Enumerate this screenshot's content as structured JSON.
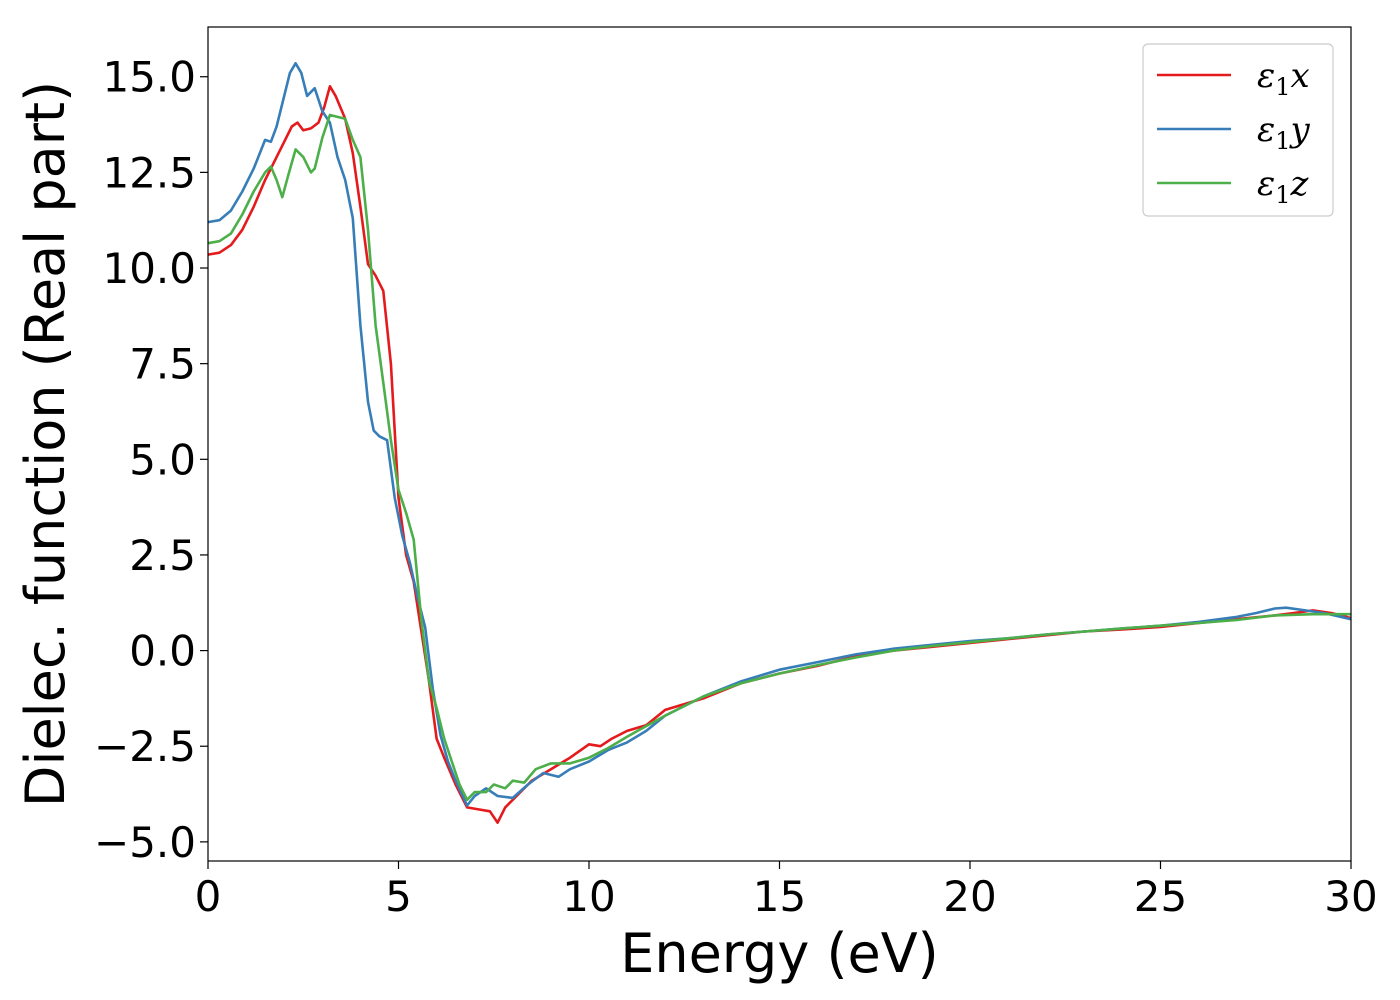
{
  "chart_data": {
    "type": "line",
    "title": "",
    "xlabel": "Energy (eV)",
    "ylabel": "Dielec. function (Real part)",
    "xlim": [
      0,
      30
    ],
    "ylim": [
      -5.5,
      16.3
    ],
    "xticks": [
      0,
      5,
      10,
      15,
      20,
      25,
      30
    ],
    "xtick_labels": [
      "0",
      "5",
      "10",
      "15",
      "20",
      "25",
      "30"
    ],
    "yticks": [
      -5.0,
      -2.5,
      0.0,
      2.5,
      5.0,
      7.5,
      10.0,
      12.5,
      15.0
    ],
    "ytick_labels": [
      "−5.0",
      "−2.5",
      "0.0",
      "2.5",
      "5.0",
      "7.5",
      "10.0",
      "12.5",
      "15.0"
    ],
    "grid": false,
    "legend_position": "top-right",
    "series": [
      {
        "name": "ε₁x",
        "legend_main": "ε",
        "legend_sub": "1",
        "legend_var": "x",
        "color": "#e41a1c",
        "points": [
          [
            0,
            10.35
          ],
          [
            0.3,
            10.4
          ],
          [
            0.6,
            10.6
          ],
          [
            0.9,
            11.0
          ],
          [
            1.2,
            11.6
          ],
          [
            1.5,
            12.3
          ],
          [
            1.8,
            12.9
          ],
          [
            2.0,
            13.3
          ],
          [
            2.2,
            13.7
          ],
          [
            2.35,
            13.8
          ],
          [
            2.5,
            13.6
          ],
          [
            2.7,
            13.65
          ],
          [
            2.9,
            13.8
          ],
          [
            3.05,
            14.2
          ],
          [
            3.2,
            14.75
          ],
          [
            3.35,
            14.5
          ],
          [
            3.6,
            13.9
          ],
          [
            3.8,
            13.0
          ],
          [
            4.0,
            11.6
          ],
          [
            4.2,
            10.1
          ],
          [
            4.4,
            9.8
          ],
          [
            4.6,
            9.4
          ],
          [
            4.8,
            7.5
          ],
          [
            5.0,
            4.0
          ],
          [
            5.2,
            2.5
          ],
          [
            5.4,
            1.8
          ],
          [
            5.6,
            0.5
          ],
          [
            5.8,
            -0.8
          ],
          [
            6.0,
            -2.3
          ],
          [
            6.2,
            -2.8
          ],
          [
            6.5,
            -3.5
          ],
          [
            6.8,
            -4.1
          ],
          [
            7.1,
            -4.15
          ],
          [
            7.4,
            -4.2
          ],
          [
            7.6,
            -4.5
          ],
          [
            7.8,
            -4.1
          ],
          [
            8.1,
            -3.8
          ],
          [
            8.5,
            -3.4
          ],
          [
            9.0,
            -3.1
          ],
          [
            9.5,
            -2.8
          ],
          [
            10.0,
            -2.45
          ],
          [
            10.3,
            -2.5
          ],
          [
            10.6,
            -2.3
          ],
          [
            11.0,
            -2.1
          ],
          [
            11.5,
            -1.95
          ],
          [
            12.0,
            -1.55
          ],
          [
            13.0,
            -1.25
          ],
          [
            14.0,
            -0.85
          ],
          [
            15.0,
            -0.6
          ],
          [
            16.0,
            -0.4
          ],
          [
            17.0,
            -0.15
          ],
          [
            18.0,
            0.0
          ],
          [
            19.0,
            0.1
          ],
          [
            20.0,
            0.2
          ],
          [
            21.0,
            0.3
          ],
          [
            22.0,
            0.4
          ],
          [
            23.0,
            0.5
          ],
          [
            24.0,
            0.55
          ],
          [
            25.0,
            0.62
          ],
          [
            26.0,
            0.72
          ],
          [
            27.0,
            0.82
          ],
          [
            28.0,
            0.92
          ],
          [
            28.5,
            0.98
          ],
          [
            29.0,
            1.05
          ],
          [
            29.5,
            0.98
          ],
          [
            30.0,
            0.85
          ]
        ]
      },
      {
        "name": "ε₁y",
        "legend_main": "ε",
        "legend_sub": "1",
        "legend_var": "y",
        "color": "#377eb8",
        "points": [
          [
            0,
            11.2
          ],
          [
            0.3,
            11.25
          ],
          [
            0.6,
            11.5
          ],
          [
            0.9,
            12.0
          ],
          [
            1.2,
            12.6
          ],
          [
            1.5,
            13.35
          ],
          [
            1.65,
            13.3
          ],
          [
            1.8,
            13.7
          ],
          [
            2.0,
            14.5
          ],
          [
            2.15,
            15.1
          ],
          [
            2.3,
            15.35
          ],
          [
            2.45,
            15.1
          ],
          [
            2.6,
            14.5
          ],
          [
            2.8,
            14.7
          ],
          [
            3.0,
            14.1
          ],
          [
            3.2,
            13.8
          ],
          [
            3.4,
            12.9
          ],
          [
            3.6,
            12.3
          ],
          [
            3.8,
            11.3
          ],
          [
            4.0,
            8.5
          ],
          [
            4.2,
            6.5
          ],
          [
            4.35,
            5.75
          ],
          [
            4.5,
            5.6
          ],
          [
            4.7,
            5.5
          ],
          [
            4.9,
            4.0
          ],
          [
            5.1,
            3.0
          ],
          [
            5.3,
            2.3
          ],
          [
            5.5,
            1.4
          ],
          [
            5.7,
            0.6
          ],
          [
            5.9,
            -1.0
          ],
          [
            6.1,
            -2.2
          ],
          [
            6.3,
            -2.9
          ],
          [
            6.5,
            -3.4
          ],
          [
            6.8,
            -4.05
          ],
          [
            7.0,
            -3.8
          ],
          [
            7.3,
            -3.6
          ],
          [
            7.6,
            -3.8
          ],
          [
            8.0,
            -3.85
          ],
          [
            8.4,
            -3.5
          ],
          [
            8.8,
            -3.2
          ],
          [
            9.2,
            -3.3
          ],
          [
            9.5,
            -3.1
          ],
          [
            10.0,
            -2.9
          ],
          [
            10.5,
            -2.6
          ],
          [
            11.0,
            -2.4
          ],
          [
            11.5,
            -2.1
          ],
          [
            12.0,
            -1.7
          ],
          [
            13.0,
            -1.2
          ],
          [
            14.0,
            -0.8
          ],
          [
            15.0,
            -0.5
          ],
          [
            16.0,
            -0.3
          ],
          [
            17.0,
            -0.1
          ],
          [
            18.0,
            0.05
          ],
          [
            19.0,
            0.15
          ],
          [
            20.0,
            0.25
          ],
          [
            21.0,
            0.32
          ],
          [
            22.0,
            0.42
          ],
          [
            23.0,
            0.5
          ],
          [
            24.0,
            0.58
          ],
          [
            25.0,
            0.65
          ],
          [
            26.0,
            0.75
          ],
          [
            27.0,
            0.88
          ],
          [
            27.5,
            0.98
          ],
          [
            28.0,
            1.1
          ],
          [
            28.3,
            1.12
          ],
          [
            28.8,
            1.05
          ],
          [
            29.3,
            0.98
          ],
          [
            30.0,
            0.82
          ]
        ]
      },
      {
        "name": "ε₁z",
        "legend_main": "ε",
        "legend_sub": "1",
        "legend_var": "z",
        "color": "#4daf4a",
        "points": [
          [
            0,
            10.65
          ],
          [
            0.3,
            10.7
          ],
          [
            0.6,
            10.9
          ],
          [
            0.9,
            11.4
          ],
          [
            1.2,
            12.0
          ],
          [
            1.5,
            12.5
          ],
          [
            1.65,
            12.65
          ],
          [
            1.8,
            12.3
          ],
          [
            1.95,
            11.85
          ],
          [
            2.1,
            12.4
          ],
          [
            2.3,
            13.1
          ],
          [
            2.5,
            12.9
          ],
          [
            2.7,
            12.5
          ],
          [
            2.8,
            12.6
          ],
          [
            3.0,
            13.4
          ],
          [
            3.2,
            14.0
          ],
          [
            3.4,
            13.95
          ],
          [
            3.6,
            13.9
          ],
          [
            3.8,
            13.35
          ],
          [
            4.0,
            12.9
          ],
          [
            4.2,
            11.0
          ],
          [
            4.4,
            8.5
          ],
          [
            4.6,
            7.0
          ],
          [
            4.8,
            5.5
          ],
          [
            5.0,
            4.2
          ],
          [
            5.2,
            3.6
          ],
          [
            5.4,
            2.9
          ],
          [
            5.6,
            0.8
          ],
          [
            5.8,
            -0.8
          ],
          [
            6.0,
            -1.5
          ],
          [
            6.2,
            -2.3
          ],
          [
            6.4,
            -2.9
          ],
          [
            6.6,
            -3.5
          ],
          [
            6.8,
            -3.9
          ],
          [
            7.0,
            -3.7
          ],
          [
            7.3,
            -3.7
          ],
          [
            7.5,
            -3.5
          ],
          [
            7.8,
            -3.6
          ],
          [
            8.0,
            -3.4
          ],
          [
            8.3,
            -3.45
          ],
          [
            8.6,
            -3.1
          ],
          [
            9.0,
            -2.95
          ],
          [
            9.5,
            -2.95
          ],
          [
            10.0,
            -2.8
          ],
          [
            10.5,
            -2.55
          ],
          [
            11.0,
            -2.25
          ],
          [
            12.0,
            -1.7
          ],
          [
            13.0,
            -1.2
          ],
          [
            14.0,
            -0.85
          ],
          [
            15.0,
            -0.6
          ],
          [
            16.0,
            -0.38
          ],
          [
            17.0,
            -0.18
          ],
          [
            18.0,
            0.0
          ],
          [
            19.0,
            0.12
          ],
          [
            20.0,
            0.22
          ],
          [
            21.0,
            0.32
          ],
          [
            22.0,
            0.42
          ],
          [
            23.0,
            0.5
          ],
          [
            24.0,
            0.58
          ],
          [
            25.0,
            0.65
          ],
          [
            26.0,
            0.72
          ],
          [
            27.0,
            0.8
          ],
          [
            28.0,
            0.92
          ],
          [
            29.0,
            0.95
          ],
          [
            30.0,
            0.95
          ]
        ]
      }
    ]
  }
}
